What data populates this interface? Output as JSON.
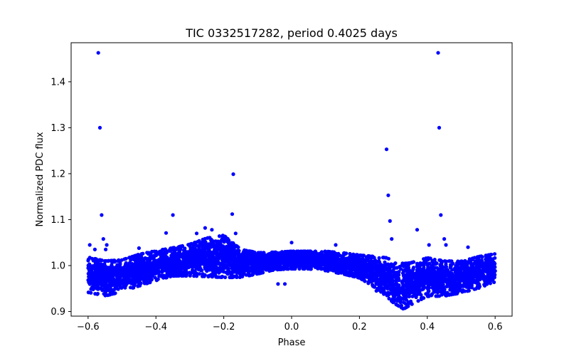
{
  "chart_data": {
    "type": "scatter",
    "title": "TIC 0332517282, period 0.4025 days",
    "xlabel": "Phase",
    "ylabel": "Normalized PDC flux",
    "xlim": [
      -0.65,
      0.65
    ],
    "ylim": [
      0.89,
      1.485
    ],
    "xticks": [
      -0.6,
      -0.4,
      -0.2,
      0.0,
      0.2,
      0.4,
      0.6
    ],
    "xtick_labels": [
      "−0.6",
      "−0.4",
      "−0.2",
      "0.0",
      "0.2",
      "0.4",
      "0.6"
    ],
    "yticks": [
      0.9,
      1.0,
      1.1,
      1.2,
      1.3,
      1.4
    ],
    "ytick_labels": [
      "0.9",
      "1.0",
      "1.1",
      "1.2",
      "1.3",
      "1.4"
    ],
    "grid": false,
    "marker_color": "#0000ff",
    "phase_range": [
      -0.6,
      0.6
    ],
    "baseline_profile": {
      "phase": [
        -0.6,
        -0.55,
        -0.5,
        -0.45,
        -0.4,
        -0.35,
        -0.3,
        -0.25,
        -0.2,
        -0.15,
        -0.1,
        -0.05,
        0.0,
        0.05,
        0.1,
        0.15,
        0.2,
        0.25,
        0.28,
        0.3,
        0.33,
        0.35,
        0.4,
        0.45,
        0.5,
        0.55,
        0.6
      ],
      "flux": [
        0.98,
        0.972,
        0.978,
        0.99,
        1.0,
        1.008,
        1.012,
        1.018,
        1.02,
        1.005,
        1.005,
        1.01,
        1.012,
        1.012,
        1.01,
        1.005,
        0.998,
        0.985,
        0.975,
        0.965,
        0.955,
        0.96,
        0.975,
        0.972,
        0.975,
        0.985,
        0.995
      ],
      "scatter": [
        0.02,
        0.02,
        0.018,
        0.018,
        0.017,
        0.016,
        0.018,
        0.022,
        0.024,
        0.016,
        0.012,
        0.01,
        0.01,
        0.01,
        0.011,
        0.012,
        0.013,
        0.018,
        0.022,
        0.024,
        0.026,
        0.024,
        0.022,
        0.02,
        0.018,
        0.018,
        0.016
      ],
      "n_points": 5200
    },
    "outliers": [
      {
        "x": -0.57,
        "y": 1.463
      },
      {
        "x": 0.432,
        "y": 1.463
      },
      {
        "x": -0.565,
        "y": 1.3
      },
      {
        "x": 0.435,
        "y": 1.3
      },
      {
        "x": 0.28,
        "y": 1.253
      },
      {
        "x": -0.172,
        "y": 1.199
      },
      {
        "x": 0.285,
        "y": 1.153
      },
      {
        "x": -0.56,
        "y": 1.11
      },
      {
        "x": -0.35,
        "y": 1.11
      },
      {
        "x": -0.175,
        "y": 1.112
      },
      {
        "x": 0.44,
        "y": 1.11
      },
      {
        "x": 0.29,
        "y": 1.097
      },
      {
        "x": -0.555,
        "y": 1.058
      },
      {
        "x": -0.37,
        "y": 1.071
      },
      {
        "x": -0.28,
        "y": 1.07
      },
      {
        "x": -0.255,
        "y": 1.082
      },
      {
        "x": -0.235,
        "y": 1.078
      },
      {
        "x": -0.165,
        "y": 1.07
      },
      {
        "x": 0.295,
        "y": 1.058
      },
      {
        "x": 0.37,
        "y": 1.078
      },
      {
        "x": 0.45,
        "y": 1.058
      },
      {
        "x": 0.455,
        "y": 1.045
      },
      {
        "x": -0.595,
        "y": 1.045
      },
      {
        "x": -0.58,
        "y": 1.035
      },
      {
        "x": -0.545,
        "y": 1.045
      },
      {
        "x": -0.548,
        "y": 1.035
      },
      {
        "x": 0.405,
        "y": 1.045
      },
      {
        "x": -0.02,
        "y": 0.96
      },
      {
        "x": -0.04,
        "y": 0.96
      },
      {
        "x": 0.0,
        "y": 1.05
      },
      {
        "x": 0.25,
        "y": 0.945
      },
      {
        "x": 0.52,
        "y": 1.04
      },
      {
        "x": -0.45,
        "y": 1.038
      },
      {
        "x": 0.13,
        "y": 1.045
      },
      {
        "x": 0.3,
        "y": 0.935
      },
      {
        "x": 0.33,
        "y": 0.92
      }
    ]
  }
}
